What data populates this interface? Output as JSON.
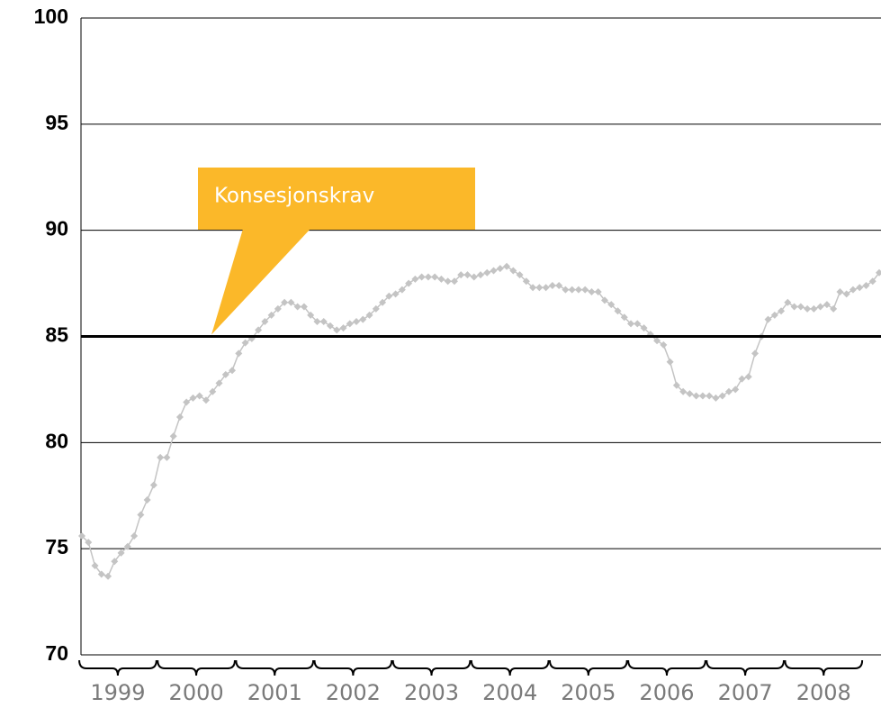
{
  "chart_data": {
    "type": "line",
    "categories": [
      "1999",
      null,
      null,
      null,
      null,
      null,
      null,
      null,
      null,
      null,
      null,
      null,
      "2000",
      null,
      null,
      null,
      null,
      null,
      null,
      null,
      null,
      null,
      null,
      null,
      "2001",
      null,
      null,
      null,
      null,
      null,
      null,
      null,
      null,
      null,
      null,
      null,
      "2002",
      null,
      null,
      null,
      null,
      null,
      null,
      null,
      null,
      null,
      null,
      null,
      "2003",
      null,
      null,
      null,
      null,
      null,
      null,
      null,
      null,
      null,
      null,
      null,
      "2004",
      null,
      null,
      null,
      null,
      null,
      null,
      null,
      null,
      null,
      null,
      null,
      "2005",
      null,
      null,
      null,
      null,
      null,
      null,
      null,
      null,
      null,
      null,
      null,
      "2006",
      null,
      null,
      null,
      null,
      null,
      null,
      null,
      null,
      null,
      null,
      null,
      "2007",
      null,
      null,
      null,
      null,
      null,
      null,
      null,
      null,
      null,
      null,
      null,
      "2008",
      null,
      null,
      null,
      null,
      null,
      null,
      null,
      null,
      null,
      null,
      null,
      null,
      null,
      null
    ],
    "series": [
      {
        "color": "#c4c4c4",
        "values": [
          75.6,
          75.3,
          74.2,
          73.8,
          73.7,
          74.4,
          74.8,
          75.1,
          75.6,
          76.6,
          77.3,
          78.0,
          79.3,
          79.3,
          80.3,
          81.2,
          81.9,
          82.1,
          82.2,
          82.0,
          82.4,
          82.8,
          83.2,
          83.4,
          84.2,
          84.7,
          84.9,
          85.3,
          85.7,
          86.0,
          86.3,
          86.6,
          86.6,
          86.4,
          86.4,
          86.0,
          85.7,
          85.7,
          85.5,
          85.3,
          85.4,
          85.6,
          85.7,
          85.8,
          86.0,
          86.3,
          86.6,
          86.9,
          87.0,
          87.2,
          87.5,
          87.7,
          87.8,
          87.8,
          87.8,
          87.7,
          87.6,
          87.6,
          87.9,
          87.9,
          87.8,
          87.9,
          88.0,
          88.1,
          88.2,
          88.3,
          88.1,
          87.9,
          87.6,
          87.3,
          87.3,
          87.3,
          87.4,
          87.4,
          87.2,
          87.2,
          87.2,
          87.2,
          87.1,
          87.1,
          86.7,
          86.5,
          86.2,
          85.9,
          85.6,
          85.6,
          85.4,
          85.1,
          84.8,
          84.6,
          83.8,
          82.7,
          82.4,
          82.3,
          82.2,
          82.2,
          82.2,
          82.1,
          82.2,
          82.4,
          82.5,
          83.0,
          83.1,
          84.2,
          85.0,
          85.8,
          86.0,
          86.2,
          86.6,
          86.4,
          86.4,
          86.3,
          86.3,
          86.4,
          86.5,
          86.3,
          87.1,
          87.0,
          87.2,
          87.3,
          87.4,
          87.6,
          88.0
        ]
      }
    ],
    "reference_line": {
      "value": 85,
      "label": "Konsesjonskrav",
      "color": "#fbb829"
    },
    "ylim": [
      70,
      100
    ],
    "yticks": [
      70,
      75,
      80,
      85,
      90,
      95,
      100
    ],
    "grid": true
  }
}
